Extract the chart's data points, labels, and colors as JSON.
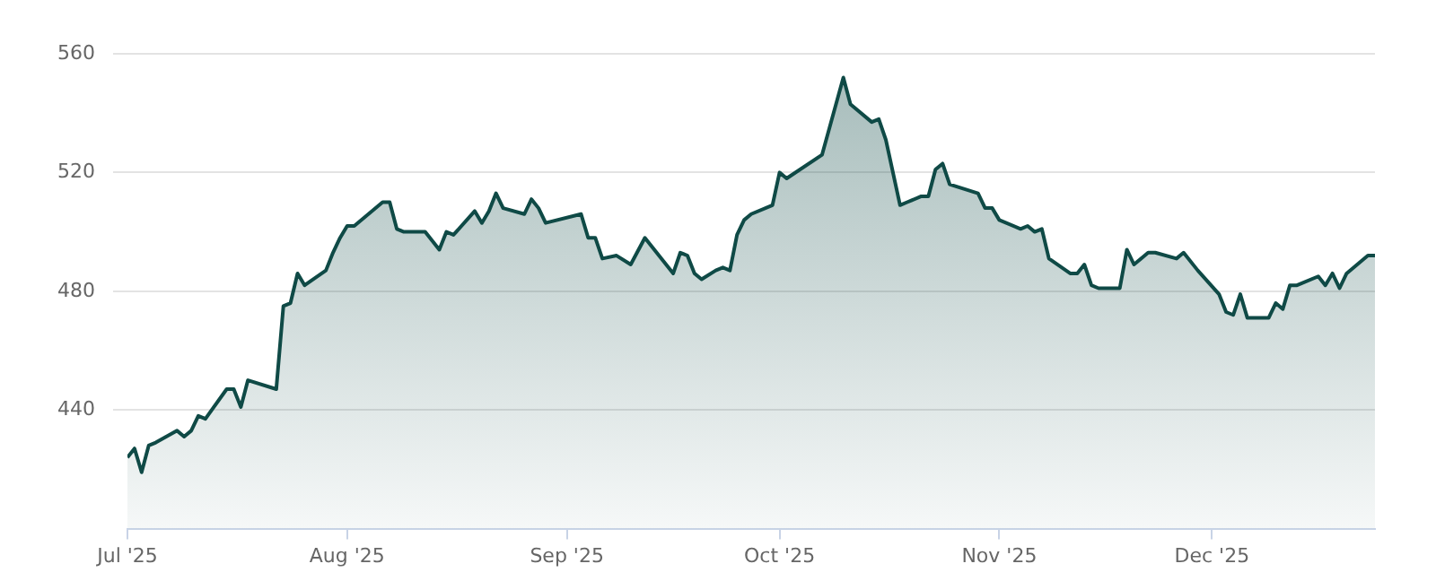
{
  "chart_data": {
    "type": "area",
    "x": [
      "2025-07-01",
      "2025-07-02",
      "2025-07-03",
      "2025-07-04",
      "2025-07-05",
      "2025-07-08",
      "2025-07-09",
      "2025-07-10",
      "2025-07-11",
      "2025-07-12",
      "2025-07-15",
      "2025-07-16",
      "2025-07-17",
      "2025-07-18",
      "2025-07-22",
      "2025-07-23",
      "2025-07-24",
      "2025-07-25",
      "2025-07-26",
      "2025-07-29",
      "2025-07-30",
      "2025-07-31",
      "2025-08-01",
      "2025-08-02",
      "2025-08-06",
      "2025-08-07",
      "2025-08-08",
      "2025-08-09",
      "2025-08-12",
      "2025-08-14",
      "2025-08-15",
      "2025-08-16",
      "2025-08-19",
      "2025-08-20",
      "2025-08-21",
      "2025-08-22",
      "2025-08-23",
      "2025-08-26",
      "2025-08-27",
      "2025-08-28",
      "2025-08-29",
      "2025-09-03",
      "2025-09-04",
      "2025-09-05",
      "2025-09-06",
      "2025-09-08",
      "2025-09-10",
      "2025-09-12",
      "2025-09-16",
      "2025-09-17",
      "2025-09-18",
      "2025-09-19",
      "2025-09-20",
      "2025-09-22",
      "2025-09-23",
      "2025-09-24",
      "2025-09-25",
      "2025-09-26",
      "2025-09-27",
      "2025-09-30",
      "2025-10-01",
      "2025-10-02",
      "2025-10-07",
      "2025-10-10",
      "2025-10-11",
      "2025-10-14",
      "2025-10-15",
      "2025-10-16",
      "2025-10-18",
      "2025-10-19",
      "2025-10-21",
      "2025-10-22",
      "2025-10-23",
      "2025-10-24",
      "2025-10-25",
      "2025-10-29",
      "2025-10-30",
      "2025-10-31",
      "2025-11-01",
      "2025-11-04",
      "2025-11-05",
      "2025-11-06",
      "2025-11-07",
      "2025-11-08",
      "2025-11-11",
      "2025-11-12",
      "2025-11-13",
      "2025-11-14",
      "2025-11-15",
      "2025-11-18",
      "2025-11-19",
      "2025-11-20",
      "2025-11-22",
      "2025-11-23",
      "2025-11-26",
      "2025-11-27",
      "2025-11-29",
      "2025-12-02",
      "2025-12-03",
      "2025-12-04",
      "2025-12-05",
      "2025-12-06",
      "2025-12-09",
      "2025-12-10",
      "2025-12-11",
      "2025-12-12",
      "2025-12-13",
      "2025-12-16",
      "2025-12-17",
      "2025-12-18",
      "2025-12-19",
      "2025-12-20",
      "2025-12-23",
      "2025-12-24"
    ],
    "series": [
      {
        "color": "#0f4a46",
        "values": [
          424,
          427,
          419,
          428,
          429,
          433,
          431,
          433,
          438,
          437,
          447,
          447,
          441,
          450,
          447,
          475,
          476,
          486,
          482,
          487,
          493,
          498,
          502,
          502,
          510,
          510,
          501,
          500,
          500,
          494,
          500,
          499,
          507,
          503,
          507,
          513,
          508,
          506,
          511,
          508,
          503,
          506,
          498,
          498,
          491,
          492,
          489,
          498,
          486,
          493,
          492,
          486,
          484,
          487,
          488,
          487,
          499,
          504,
          506,
          509,
          520,
          518,
          526,
          552,
          543,
          537,
          538,
          531,
          509,
          510,
          512,
          512,
          521,
          523,
          516,
          513,
          508,
          508,
          504,
          501,
          502,
          500,
          501,
          491,
          486,
          486,
          489,
          482,
          481,
          481,
          494,
          489,
          493,
          493,
          491,
          493,
          487,
          479,
          473,
          472,
          479,
          471,
          471,
          476,
          474,
          482,
          482,
          485,
          482,
          486,
          481,
          486,
          492,
          492
        ]
      }
    ],
    "xlim": [
      "2025-07-01",
      "2025-12-24"
    ],
    "xticks": [
      {
        "value": "2025-07-01",
        "label": "Jul '25"
      },
      {
        "value": "2025-08-01",
        "label": "Aug '25"
      },
      {
        "value": "2025-09-01",
        "label": "Sep '25"
      },
      {
        "value": "2025-10-01",
        "label": "Oct '25"
      },
      {
        "value": "2025-11-01",
        "label": "Nov '25"
      },
      {
        "value": "2025-12-01",
        "label": "Dec '25"
      }
    ],
    "ylim": [
      400,
      560
    ],
    "yticks": [
      440,
      480,
      520,
      560
    ],
    "grid": "y",
    "legend": false,
    "marker": "none"
  }
}
